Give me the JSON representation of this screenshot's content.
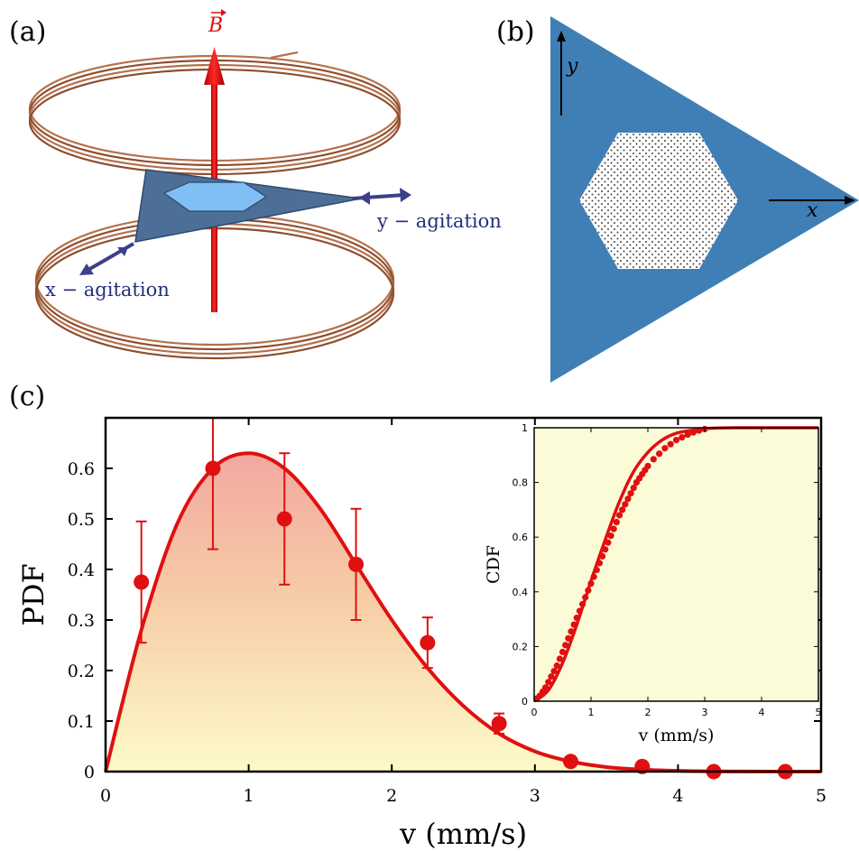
{
  "panels": {
    "a": {
      "label": "(a)",
      "field_label": "B",
      "x_agitation": "x − agitation",
      "y_agitation": "y − agitation"
    },
    "b": {
      "label": "(b)",
      "axis_y": "y",
      "axis_x": "x"
    },
    "c": {
      "label": "(c)"
    }
  },
  "colors": {
    "accent_red": "#e01010",
    "plate_blue": "#3f7fb6",
    "coil_copper": "#b5714a",
    "fill_top": "#f2a8a0",
    "fill_bottom": "#fdfbc8",
    "inset_fill": "#fcfbd8"
  },
  "chart_data": [
    {
      "type": "line",
      "xlabel": "v (mm/s)",
      "ylabel": "PDF",
      "xlim": [
        0,
        5
      ],
      "ylim": [
        0,
        0.7
      ],
      "xticks": [
        "0",
        "1",
        "2",
        "3",
        "4",
        "5"
      ],
      "yticks": [
        "0",
        "0.1",
        "0.2",
        "0.3",
        "0.4",
        "0.5",
        "0.6"
      ],
      "grid": false,
      "series": [
        {
          "kind": "curve",
          "fill": "gradient",
          "x": [
            0,
            0.25,
            0.5,
            0.75,
            1.0,
            1.25,
            1.5,
            1.75,
            2.0,
            2.25,
            2.5,
            2.75,
            3.0,
            3.25,
            3.5,
            3.75,
            4.0,
            4.25,
            4.5,
            4.75,
            5.0
          ],
          "y": [
            0,
            0.28,
            0.49,
            0.6,
            0.63,
            0.6,
            0.52,
            0.41,
            0.3,
            0.205,
            0.13,
            0.075,
            0.04,
            0.02,
            0.009,
            0.004,
            0.0015,
            0.0005,
            0.0002,
            0.0001,
            0
          ]
        },
        {
          "kind": "points",
          "x": [
            0.25,
            0.75,
            1.25,
            1.75,
            2.25,
            2.75,
            3.25,
            3.75,
            4.25,
            4.75
          ],
          "y": [
            0.375,
            0.6,
            0.5,
            0.41,
            0.255,
            0.095,
            0.02,
            0.01,
            0.0,
            0.0
          ],
          "err": [
            0.12,
            0.16,
            0.13,
            0.11,
            0.05,
            0.02,
            0,
            0,
            0,
            0
          ]
        }
      ]
    },
    {
      "type": "line",
      "xlabel": "v (mm/s)",
      "ylabel": "CDF",
      "xlim": [
        0,
        5
      ],
      "ylim": [
        0,
        1
      ],
      "xticks": [
        "0",
        "1",
        "2",
        "3",
        "4",
        "5"
      ],
      "yticks": [
        "0",
        "0.2",
        "0.4",
        "0.6",
        "0.8",
        "1"
      ],
      "grid": false,
      "series": [
        {
          "kind": "curve",
          "x": [
            0,
            0.25,
            0.5,
            0.75,
            1.0,
            1.25,
            1.5,
            1.75,
            2.0,
            2.25,
            2.5,
            2.75,
            3.0,
            3.5,
            4.0,
            5.0
          ],
          "y": [
            0,
            0.04,
            0.14,
            0.28,
            0.44,
            0.59,
            0.73,
            0.84,
            0.91,
            0.955,
            0.98,
            0.99,
            0.997,
            1.0,
            1.0,
            1.0
          ]
        },
        {
          "kind": "points",
          "x": [
            0.05,
            0.1,
            0.15,
            0.2,
            0.25,
            0.3,
            0.35,
            0.4,
            0.45,
            0.5,
            0.55,
            0.6,
            0.65,
            0.7,
            0.75,
            0.8,
            0.85,
            0.9,
            0.95,
            1.0,
            1.05,
            1.1,
            1.15,
            1.2,
            1.25,
            1.3,
            1.35,
            1.4,
            1.45,
            1.5,
            1.55,
            1.6,
            1.65,
            1.7,
            1.75,
            1.8,
            1.85,
            1.9,
            1.95,
            2.0,
            2.1,
            2.2,
            2.3,
            2.4,
            2.5,
            2.6,
            2.7,
            2.8,
            2.9,
            3.0
          ],
          "y": [
            0.01,
            0.02,
            0.035,
            0.05,
            0.07,
            0.09,
            0.11,
            0.13,
            0.155,
            0.18,
            0.205,
            0.23,
            0.255,
            0.28,
            0.305,
            0.33,
            0.355,
            0.38,
            0.405,
            0.43,
            0.455,
            0.48,
            0.505,
            0.53,
            0.555,
            0.58,
            0.605,
            0.63,
            0.655,
            0.68,
            0.7,
            0.72,
            0.74,
            0.76,
            0.78,
            0.8,
            0.815,
            0.83,
            0.845,
            0.86,
            0.885,
            0.905,
            0.925,
            0.94,
            0.955,
            0.965,
            0.975,
            0.983,
            0.99,
            0.995
          ]
        }
      ]
    }
  ]
}
